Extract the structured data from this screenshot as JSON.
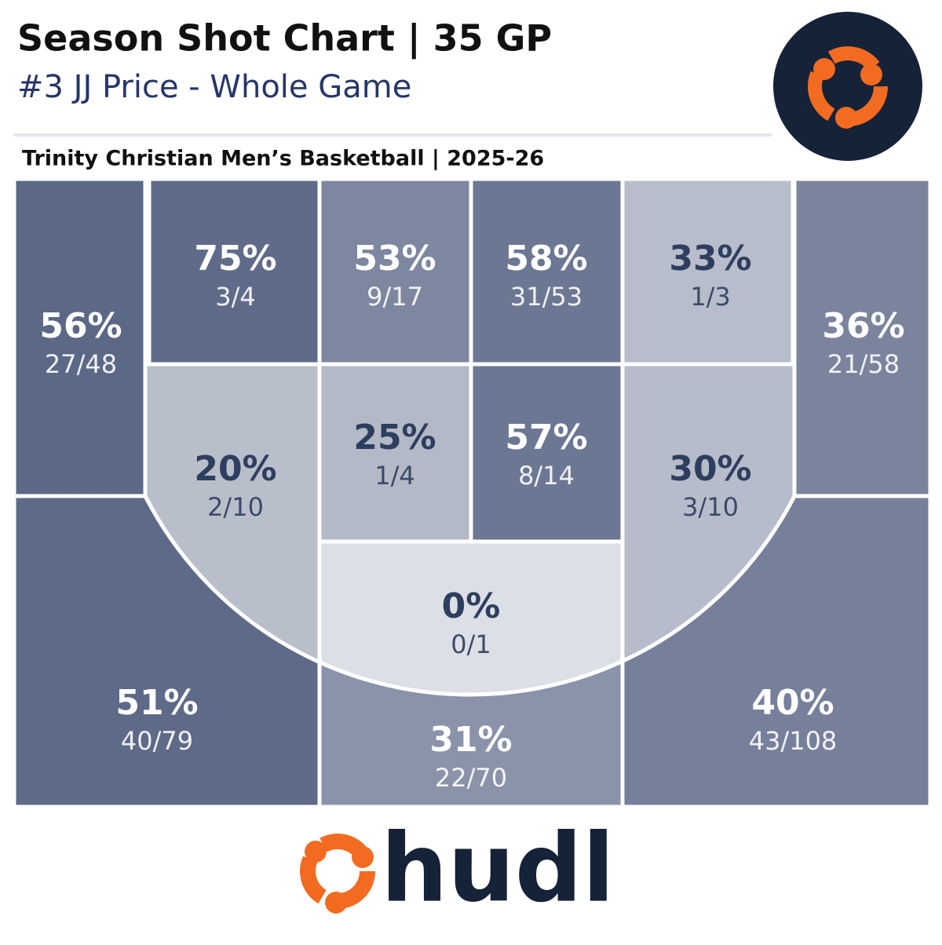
{
  "header": {
    "title": "Season Shot Chart | 35 GP",
    "subtitle": "#3 JJ Price - Whole Game",
    "team": "Trinity Christian Men’s Basketball | 2025-26"
  },
  "zones": [
    {
      "pct": "56%",
      "shots": "27/48",
      "color": "#5b6886",
      "text_color": "#ffffff"
    },
    {
      "pct": "75%",
      "shots": "3/4",
      "color": "#5f6b88",
      "text_color": "#ffffff"
    },
    {
      "pct": "53%",
      "shots": "9/17",
      "color": "#7d879f",
      "text_color": "#ffffff"
    },
    {
      "pct": "58%",
      "shots": "31/53",
      "color": "#6c7793",
      "text_color": "#ffffff"
    },
    {
      "pct": "33%",
      "shots": "1/3",
      "color": "#b8bdcb",
      "text_color": "#2e3e5e"
    },
    {
      "pct": "36%",
      "shots": "21/58",
      "color": "#7a849d",
      "text_color": "#ffffff"
    },
    {
      "pct": "20%",
      "shots": "2/10",
      "color": "#b9becb",
      "text_color": "#2e3e5e"
    },
    {
      "pct": "25%",
      "shots": "1/4",
      "color": "#b4b9c7",
      "text_color": "#2e3e5e"
    },
    {
      "pct": "57%",
      "shots": "8/14",
      "color": "#6c7793",
      "text_color": "#ffffff"
    },
    {
      "pct": "30%",
      "shots": "3/10",
      "color": "#b7bcca",
      "text_color": "#2e3e5e"
    },
    {
      "pct": "0%",
      "shots": "0/1",
      "color": "#dcdfe5",
      "text_color": "#2e3e5e"
    },
    {
      "pct": "51%",
      "shots": "40/79",
      "color": "#5e6a87",
      "text_color": "#ffffff"
    },
    {
      "pct": "31%",
      "shots": "22/70",
      "color": "#8a93aa",
      "text_color": "#ffffff"
    },
    {
      "pct": "40%",
      "shots": "43/108",
      "color": "#76809b",
      "text_color": "#ffffff"
    }
  ],
  "footer": {
    "brand": "hudl"
  }
}
